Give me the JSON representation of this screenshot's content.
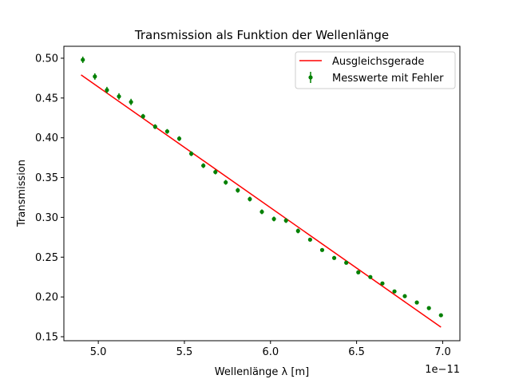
{
  "chart_data": {
    "type": "scatter",
    "title": "Transmission als Funktion der Wellenlänge",
    "xlabel": "Wellenlänge λ [m]",
    "ylabel": "Transmission",
    "x_offset_label": "1e−11",
    "xlim": [
      4.8,
      7.1
    ],
    "ylim": [
      0.145,
      0.515
    ],
    "x_ticks": [
      5.0,
      5.5,
      6.0,
      6.5,
      7.0
    ],
    "x_tick_labels": [
      "5.0",
      "5.5",
      "6.0",
      "6.5",
      "7.0"
    ],
    "y_ticks": [
      0.15,
      0.2,
      0.25,
      0.3,
      0.35,
      0.4,
      0.45,
      0.5
    ],
    "y_tick_labels": [
      "0.15",
      "0.20",
      "0.25",
      "0.30",
      "0.35",
      "0.40",
      "0.45",
      "0.50"
    ],
    "grid": false,
    "legend_position": "top-right",
    "legend": [
      {
        "label": "Ausgleichsgerade",
        "color": "#ff0000",
        "kind": "line"
      },
      {
        "label": "Messwerte mit Fehler",
        "color": "#008000",
        "kind": "errorbar"
      }
    ],
    "series": [
      {
        "name": "Messwerte mit Fehler",
        "kind": "errorbar",
        "color": "#008000",
        "x": [
          4.91,
          4.98,
          5.05,
          5.12,
          5.19,
          5.26,
          5.33,
          5.4,
          5.47,
          5.54,
          5.61,
          5.68,
          5.74,
          5.81,
          5.88,
          5.95,
          6.02,
          6.09,
          6.16,
          6.23,
          6.3,
          6.37,
          6.44,
          6.51,
          6.58,
          6.65,
          6.72,
          6.78,
          6.85,
          6.92,
          6.99
        ],
        "y": [
          0.498,
          0.477,
          0.46,
          0.452,
          0.445,
          0.427,
          0.414,
          0.408,
          0.399,
          0.38,
          0.365,
          0.357,
          0.344,
          0.334,
          0.323,
          0.307,
          0.298,
          0.296,
          0.283,
          0.272,
          0.259,
          0.249,
          0.243,
          0.231,
          0.225,
          0.217,
          0.207,
          0.201,
          0.193,
          0.186,
          0.177
        ],
        "yerr": [
          0.004,
          0.004,
          0.004,
          0.004,
          0.004,
          0.003,
          0.003,
          0.003,
          0.003,
          0.003,
          0.003,
          0.003,
          0.003,
          0.003,
          0.003,
          0.003,
          0.003,
          0.003,
          0.003,
          0.002,
          0.002,
          0.002,
          0.002,
          0.002,
          0.002,
          0.002,
          0.002,
          0.002,
          0.002,
          0.002,
          0.002
        ]
      },
      {
        "name": "Ausgleichsgerade",
        "kind": "line",
        "color": "#ff0000",
        "x": [
          4.9,
          6.99
        ],
        "y": [
          0.479,
          0.162
        ]
      }
    ]
  }
}
